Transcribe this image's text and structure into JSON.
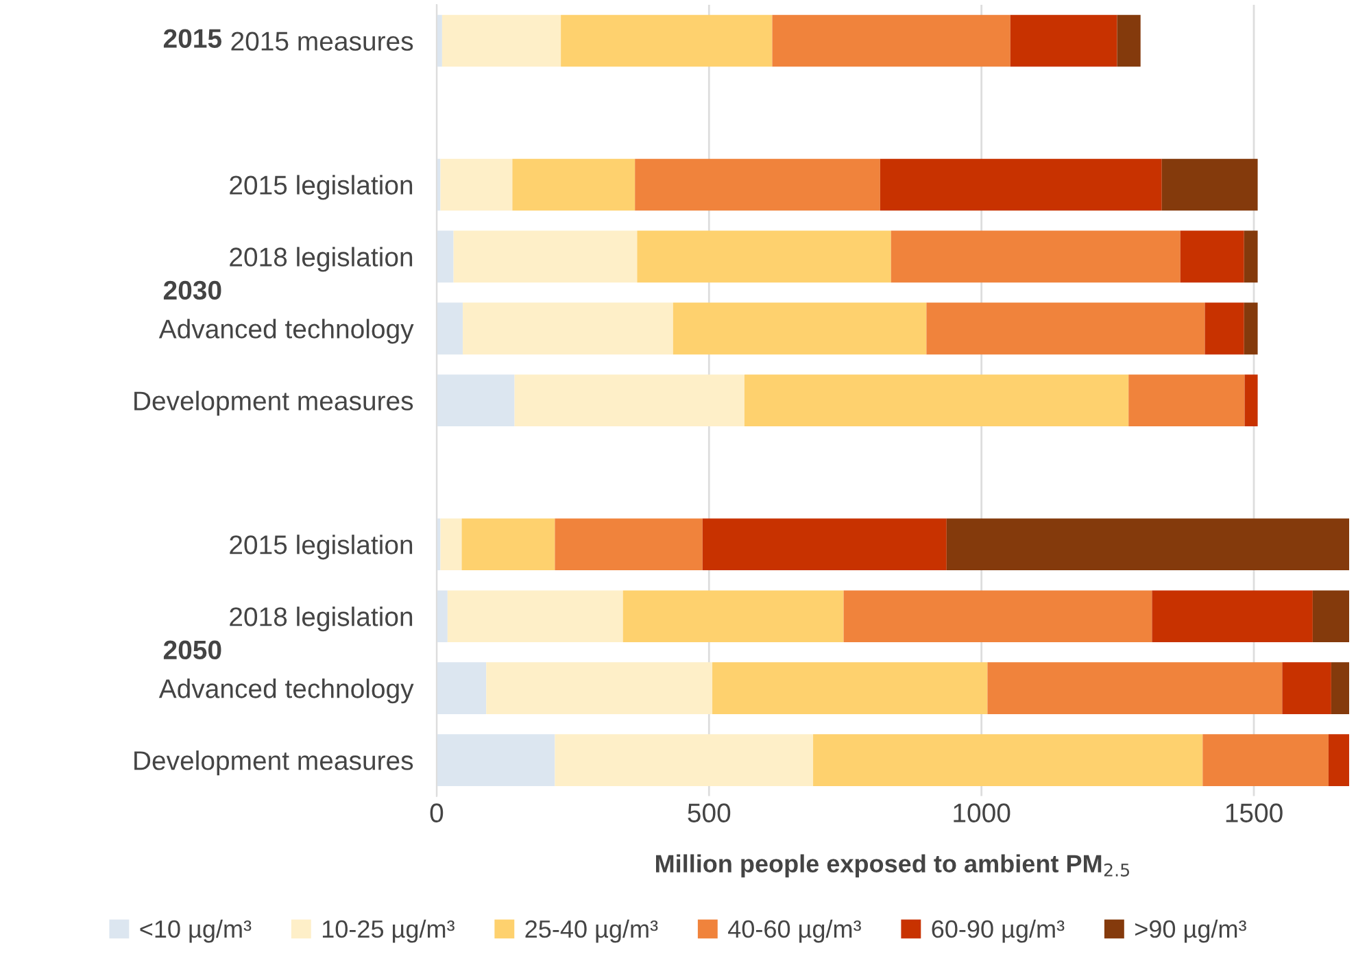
{
  "chart_data": {
    "type": "bar",
    "orientation": "horizontal",
    "stacked": true,
    "categories": [
      "2015 measures",
      null,
      "2015 legislation",
      "2018 legislation",
      "Advanced technology",
      "Development measures",
      null,
      "2015 legislation",
      "2018 legislation",
      "Advanced technology",
      "Development measures"
    ],
    "series": [
      {
        "name": "<10 µg/m³",
        "color": "#dce6f0",
        "values": [
          10,
          null,
          7,
          31,
          48,
          143,
          null,
          7,
          20,
          91,
          217
        ]
      },
      {
        "name": "10-25 µg/m³",
        "color": "#feefc8",
        "values": [
          218,
          null,
          132,
          337,
          386,
          422,
          null,
          39,
          322,
          415,
          474
        ]
      },
      {
        "name": "25-40 µg/m³",
        "color": "#fed16e",
        "values": [
          388,
          null,
          225,
          466,
          465,
          705,
          null,
          171,
          405,
          505,
          715
        ]
      },
      {
        "name": "40-60 µg/m³",
        "color": "#f0833c",
        "values": [
          437,
          null,
          450,
          531,
          511,
          213,
          null,
          271,
          566,
          541,
          231
        ]
      },
      {
        "name": "60-90 µg/m³",
        "color": "#c83200",
        "values": [
          196,
          null,
          517,
          117,
          72,
          24,
          null,
          448,
          295,
          90,
          38
        ]
      },
      {
        "name": ">90 µg/m³",
        "color": "#843a0c",
        "values": [
          43,
          null,
          176,
          25,
          25,
          null,
          null,
          739,
          67,
          33,
          null
        ]
      }
    ],
    "annotations": [
      "2015",
      "2030",
      "2050"
    ],
    "xlabel": "Million people exposed to ambient PM$_{2.5}$",
    "xlim": [
      0,
      1675
    ],
    "xticks": [
      0,
      500,
      1000,
      1500
    ],
    "grid": "x",
    "legend": "bottom"
  }
}
